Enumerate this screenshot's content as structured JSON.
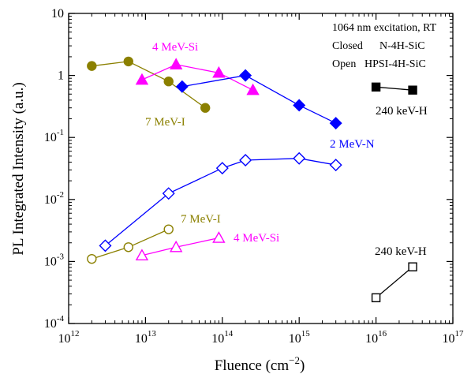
{
  "chart_data": {
    "type": "scatter",
    "xlabel": "Fluence (cm",
    "xlabel_exponent": "−2",
    "xlabel_suffix": ")",
    "ylabel": "PL Integrated Intensity (a.u.)",
    "x_scale": "log",
    "y_scale": "log",
    "xlim": [
      1000000000000.0,
      1e+17
    ],
    "ylim": [
      0.0001,
      10
    ],
    "x_ticks": [
      {
        "value": 1000000000000.0,
        "base": "10",
        "exp": "12"
      },
      {
        "value": 10000000000000.0,
        "base": "10",
        "exp": "13"
      },
      {
        "value": 100000000000000.0,
        "base": "10",
        "exp": "14"
      },
      {
        "value": 1000000000000000.0,
        "base": "10",
        "exp": "15"
      },
      {
        "value": 1e+16,
        "base": "10",
        "exp": "16"
      },
      {
        "value": 1e+17,
        "base": "10",
        "exp": "17"
      }
    ],
    "y_ticks": [
      {
        "value": 0.0001,
        "base": "10",
        "exp": "-4"
      },
      {
        "value": 0.001,
        "base": "10",
        "exp": "-3"
      },
      {
        "value": 0.01,
        "base": "10",
        "exp": "-2"
      },
      {
        "value": 0.1,
        "base": "10",
        "exp": "-1"
      },
      {
        "value": 1,
        "base": "1",
        "exp": ""
      },
      {
        "value": 10,
        "base": "10",
        "exp": ""
      }
    ],
    "notes": [
      "1064 nm excitation, RT",
      "Closed",
      "N-4H-SiC",
      "Open",
      "HPSI-4H-SiC"
    ],
    "series": [
      {
        "label": "7 MeV-I",
        "fill": "closed",
        "marker": "circle",
        "color": "#8B8000",
        "x": [
          2000000000000.0,
          6000000000000.0,
          20000000000000.0,
          60000000000000.0
        ],
        "y": [
          1.42,
          1.68,
          0.8,
          0.3
        ]
      },
      {
        "label": "4 MeV-Si",
        "fill": "closed",
        "marker": "triangle",
        "color": "#FF00FF",
        "x": [
          9000000000000.0,
          25000000000000.0,
          90000000000000.0,
          250000000000000.0
        ],
        "y": [
          0.85,
          1.5,
          1.1,
          0.58
        ]
      },
      {
        "label": "2 MeV-N",
        "fill": "closed",
        "marker": "diamond",
        "color": "#0000FF",
        "x": [
          30000000000000.0,
          200000000000000.0,
          1000000000000000.0,
          3000000000000000.0
        ],
        "y": [
          0.66,
          1.0,
          0.33,
          0.17
        ]
      },
      {
        "label": "240 keV-H",
        "fill": "closed",
        "marker": "square",
        "color": "#000000",
        "x": [
          1e+16,
          3e+16
        ],
        "y": [
          0.65,
          0.58
        ]
      },
      {
        "label": "2 MeV-N",
        "fill": "open",
        "marker": "diamond",
        "color": "#0000FF",
        "x": [
          3000000000000.0,
          20000000000000.0,
          100000000000000.0,
          200000000000000.0,
          1000000000000000.0,
          3000000000000000.0
        ],
        "y": [
          0.0018,
          0.0125,
          0.032,
          0.043,
          0.046,
          0.036
        ]
      },
      {
        "label": "7 MeV-I",
        "fill": "open",
        "marker": "circle",
        "color": "#8B8000",
        "x": [
          2000000000000.0,
          6000000000000.0,
          20000000000000.0
        ],
        "y": [
          0.0011,
          0.0017,
          0.0033
        ]
      },
      {
        "label": "4 MeV-Si",
        "fill": "open",
        "marker": "triangle",
        "color": "#FF00FF",
        "x": [
          9000000000000.0,
          25000000000000.0,
          90000000000000.0
        ],
        "y": [
          0.00125,
          0.0017,
          0.0024
        ]
      },
      {
        "label": "240 keV-H",
        "fill": "open",
        "marker": "square",
        "color": "#000000",
        "x": [
          1e+16,
          3e+16
        ],
        "y": [
          0.00026,
          0.00082
        ]
      }
    ]
  }
}
